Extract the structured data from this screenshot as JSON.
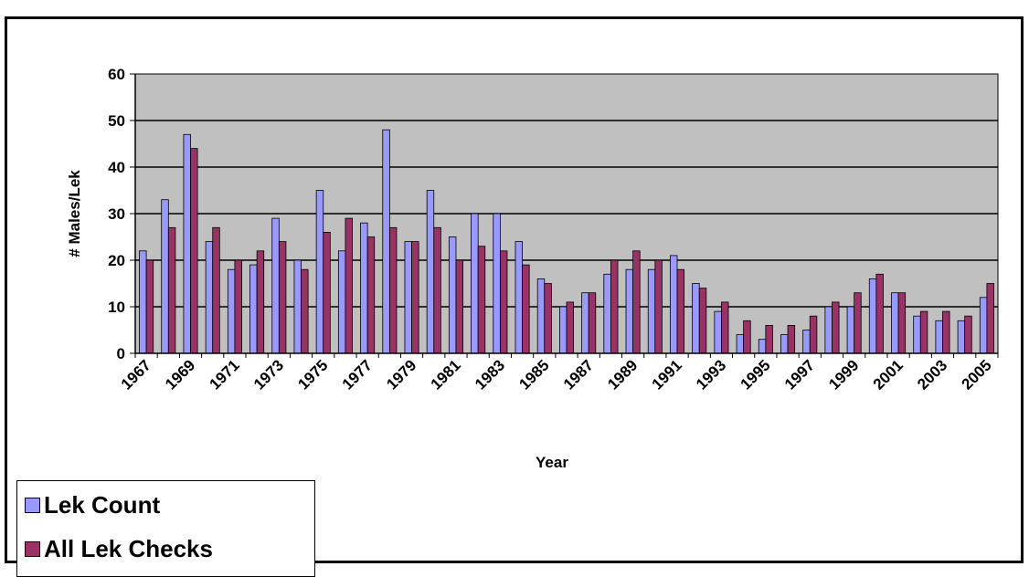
{
  "chart_data": {
    "type": "bar",
    "xlabel": "Year",
    "ylabel": "# Males/Lek",
    "ylim": [
      0,
      60
    ],
    "yticks": [
      0,
      10,
      20,
      30,
      40,
      50,
      60
    ],
    "grid": true,
    "legend_position": "bottom-left",
    "colors": {
      "plot_background": "#c0c0c0",
      "lek_count": "#9999ff",
      "all_lek_checks": "#993366"
    },
    "categories": [
      "1967",
      "1968",
      "1969",
      "1970",
      "1971",
      "1972",
      "1973",
      "1974",
      "1975",
      "1976",
      "1977",
      "1978",
      "1979",
      "1980",
      "1981",
      "1982",
      "1983",
      "1984",
      "1985",
      "1986",
      "1987",
      "1988",
      "1989",
      "1990",
      "1991",
      "1992",
      "1993",
      "1994",
      "1995",
      "1996",
      "1997",
      "1998",
      "1999",
      "2000",
      "2001",
      "2002",
      "2003",
      "2004",
      "2005"
    ],
    "tick_labels": [
      "1967",
      "1969",
      "1971",
      "1973",
      "1975",
      "1977",
      "1979",
      "1981",
      "1983",
      "1985",
      "1987",
      "1989",
      "1991",
      "1993",
      "1995",
      "1997",
      "1999",
      "2001",
      "2003",
      "2005"
    ],
    "series": [
      {
        "name": "Lek Count",
        "values": [
          22,
          33,
          47,
          24,
          18,
          19,
          29,
          20,
          35,
          22,
          28,
          48,
          24,
          35,
          25,
          30,
          30,
          24,
          16,
          10,
          13,
          17,
          18,
          18,
          21,
          15,
          9,
          4,
          3,
          4,
          5,
          10,
          10,
          16,
          13,
          8,
          7,
          7,
          12
        ]
      },
      {
        "name": "All Lek Checks",
        "values": [
          20,
          27,
          44,
          27,
          20,
          22,
          24,
          18,
          26,
          29,
          25,
          27,
          24,
          27,
          20,
          23,
          22,
          19,
          15,
          11,
          13,
          20,
          22,
          20,
          18,
          14,
          11,
          7,
          6,
          6,
          8,
          11,
          13,
          17,
          13,
          9,
          9,
          8,
          15
        ]
      }
    ]
  },
  "legend": {
    "items": [
      {
        "label": "Lek Count"
      },
      {
        "label": "All Lek Checks"
      }
    ]
  }
}
